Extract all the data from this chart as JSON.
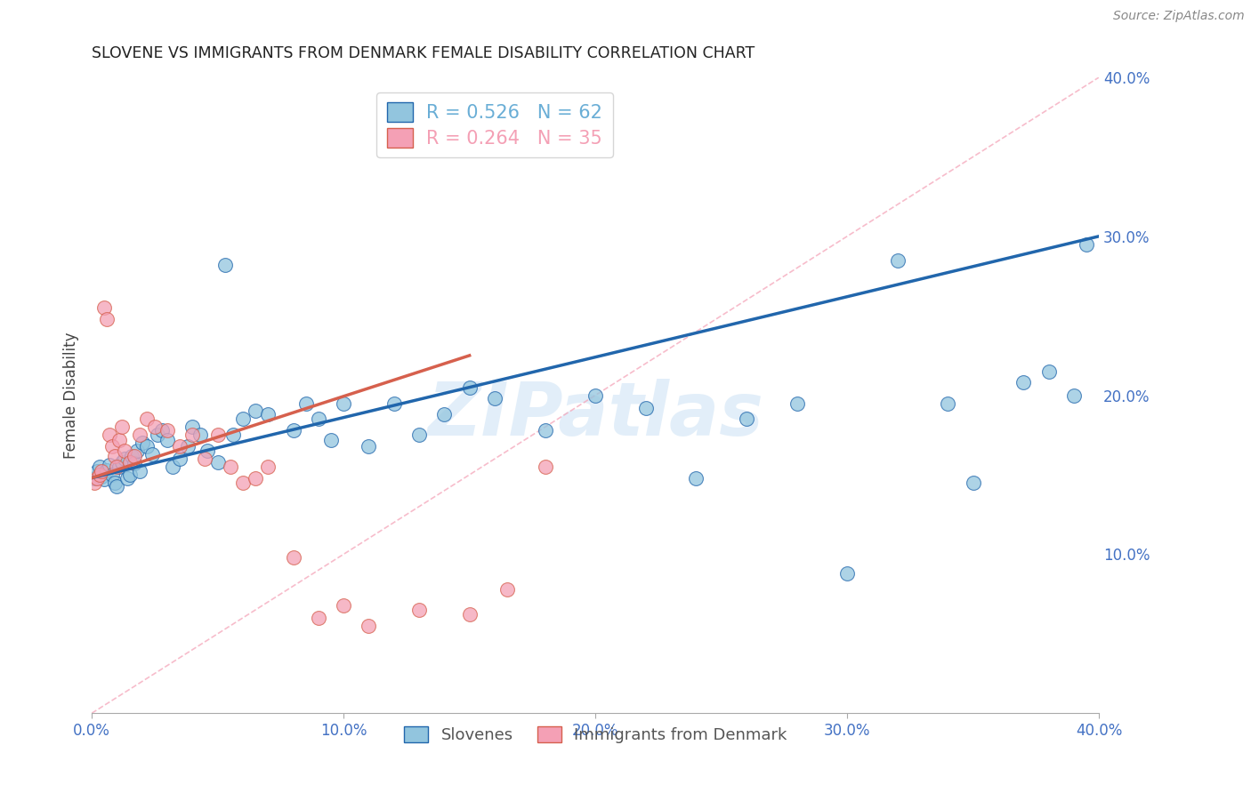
{
  "title": "SLOVENE VS IMMIGRANTS FROM DENMARK FEMALE DISABILITY CORRELATION CHART",
  "source": "Source: ZipAtlas.com",
  "ylabel": "Female Disability",
  "watermark": "ZIPatlas",
  "xlim": [
    0.0,
    0.4
  ],
  "ylim": [
    0.0,
    0.4
  ],
  "xticks": [
    0.0,
    0.1,
    0.2,
    0.3,
    0.4
  ],
  "ytick_right_positions": [
    0.1,
    0.2,
    0.3,
    0.4
  ],
  "ytick_right_labels": [
    "10.0%",
    "20.0%",
    "30.0%",
    "40.0%"
  ],
  "xtick_labels": [
    "0.0%",
    "10.0%",
    "20.0%",
    "30.0%",
    "40.0%"
  ],
  "legend_entries": [
    {
      "label": "R = 0.526   N = 62",
      "color": "#6aaed6"
    },
    {
      "label": "R = 0.264   N = 35",
      "color": "#f4a0b5"
    }
  ],
  "legend_labels_bottom": [
    "Slovenes",
    "Immigrants from Denmark"
  ],
  "slovene_color": "#92c5de",
  "denmark_color": "#f4a0b5",
  "trendline_slovene_color": "#2166ac",
  "trendline_denmark_color": "#d6604d",
  "diagonal_color": "#f4a0b5",
  "background_color": "#ffffff",
  "grid_color": "#d0d0d0",
  "axis_color": "#4472c4",
  "slovene_x": [
    0.001,
    0.002,
    0.003,
    0.004,
    0.005,
    0.006,
    0.007,
    0.008,
    0.009,
    0.01,
    0.011,
    0.012,
    0.013,
    0.014,
    0.015,
    0.016,
    0.017,
    0.018,
    0.019,
    0.02,
    0.022,
    0.024,
    0.026,
    0.028,
    0.03,
    0.032,
    0.035,
    0.038,
    0.04,
    0.043,
    0.046,
    0.05,
    0.053,
    0.056,
    0.06,
    0.065,
    0.07,
    0.08,
    0.085,
    0.09,
    0.095,
    0.1,
    0.11,
    0.12,
    0.13,
    0.14,
    0.15,
    0.16,
    0.18,
    0.2,
    0.22,
    0.24,
    0.26,
    0.28,
    0.3,
    0.32,
    0.34,
    0.35,
    0.37,
    0.38,
    0.39,
    0.395
  ],
  "slovene_y": [
    0.148,
    0.152,
    0.155,
    0.149,
    0.147,
    0.153,
    0.156,
    0.15,
    0.145,
    0.143,
    0.155,
    0.158,
    0.16,
    0.148,
    0.15,
    0.162,
    0.157,
    0.165,
    0.152,
    0.17,
    0.168,
    0.163,
    0.175,
    0.178,
    0.172,
    0.155,
    0.16,
    0.168,
    0.18,
    0.175,
    0.165,
    0.158,
    0.282,
    0.175,
    0.185,
    0.19,
    0.188,
    0.178,
    0.195,
    0.185,
    0.172,
    0.195,
    0.168,
    0.195,
    0.175,
    0.188,
    0.205,
    0.198,
    0.178,
    0.2,
    0.192,
    0.148,
    0.185,
    0.195,
    0.088,
    0.285,
    0.195,
    0.145,
    0.208,
    0.215,
    0.2,
    0.295
  ],
  "denmark_x": [
    0.001,
    0.002,
    0.003,
    0.004,
    0.005,
    0.006,
    0.007,
    0.008,
    0.009,
    0.01,
    0.011,
    0.012,
    0.013,
    0.015,
    0.017,
    0.019,
    0.022,
    0.025,
    0.03,
    0.035,
    0.04,
    0.045,
    0.05,
    0.055,
    0.06,
    0.065,
    0.07,
    0.08,
    0.09,
    0.1,
    0.11,
    0.13,
    0.15,
    0.165,
    0.18
  ],
  "denmark_y": [
    0.145,
    0.148,
    0.15,
    0.152,
    0.255,
    0.248,
    0.175,
    0.168,
    0.162,
    0.155,
    0.172,
    0.18,
    0.165,
    0.158,
    0.162,
    0.175,
    0.185,
    0.18,
    0.178,
    0.168,
    0.175,
    0.16,
    0.175,
    0.155,
    0.145,
    0.148,
    0.155,
    0.098,
    0.06,
    0.068,
    0.055,
    0.065,
    0.062,
    0.078,
    0.155
  ],
  "trendline_slovene": {
    "x_start": 0.0,
    "y_start": 0.148,
    "x_end": 0.4,
    "y_end": 0.3
  },
  "trendline_denmark": {
    "x_start": 0.0,
    "y_start": 0.148,
    "x_end": 0.15,
    "y_end": 0.225
  }
}
